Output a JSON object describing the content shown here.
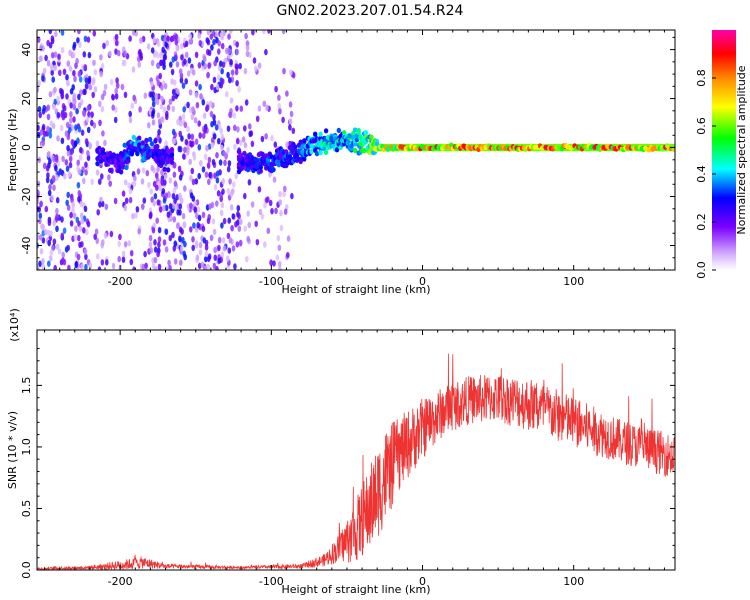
{
  "title": "GN02.2023.207.01.54.R24",
  "chart_data": [
    {
      "type": "heatmap",
      "title": "",
      "xlabel": "Height of straight line (km)",
      "ylabel": "Frequency (Hz)",
      "xlim": [
        -255,
        167
      ],
      "ylim": [
        -50,
        48
      ],
      "xticks": [
        -200,
        -100,
        0,
        100
      ],
      "yticks": [
        -40,
        -20,
        0,
        20,
        40
      ],
      "colorbar": {
        "label": "Normalized spectral amplitude",
        "range": [
          0,
          1
        ],
        "ticks": [
          "0.0",
          "0.2",
          "0.4",
          "0.6",
          "0.8"
        ],
        "colormap": "rainbow (white-violet-blue-cyan-green-yellow-orange-red-magenta)"
      },
      "ridge": [
        {
          "x": -210,
          "y": -4,
          "amp": 0.3
        },
        {
          "x": -200,
          "y": -6,
          "amp": 0.3
        },
        {
          "x": -190,
          "y": 1,
          "amp": 0.4
        },
        {
          "x": -180,
          "y": -2,
          "amp": 0.35
        },
        {
          "x": -170,
          "y": -4,
          "amp": 0.3
        },
        {
          "x": -120,
          "y": -6,
          "amp": 0.3
        },
        {
          "x": -100,
          "y": -6,
          "amp": 0.35
        },
        {
          "x": -85,
          "y": -3,
          "amp": 0.35
        },
        {
          "x": -70,
          "y": 2,
          "amp": 0.45
        },
        {
          "x": -55,
          "y": 3,
          "amp": 0.5
        },
        {
          "x": -40,
          "y": 2,
          "amp": 0.55
        },
        {
          "x": -25,
          "y": 0,
          "amp": 0.8
        },
        {
          "x": 0,
          "y": 0,
          "amp": 0.9
        },
        {
          "x": 50,
          "y": 0,
          "amp": 0.92
        },
        {
          "x": 100,
          "y": 0,
          "amp": 0.92
        },
        {
          "x": 167,
          "y": 0,
          "amp": 0.92
        }
      ],
      "scatter_regions": [
        {
          "x": [
            -255,
            -220
          ],
          "density": 0.8
        },
        {
          "x": [
            -220,
            -160
          ],
          "density": 0.35
        },
        {
          "x": [
            -180,
            -120
          ],
          "density": 0.7
        },
        {
          "x": [
            -120,
            -85
          ],
          "density": 0.25
        }
      ]
    },
    {
      "type": "line",
      "title": "",
      "xlabel": "Height of straight line (km)",
      "ylabel": "SNR (10 * v/v)",
      "y_multiplier": "(x10⁴)",
      "xlim": [
        -255,
        167
      ],
      "ylim": [
        0,
        1.95
      ],
      "xticks": [
        -200,
        -100,
        0,
        100
      ],
      "yticks": [
        "0.0",
        "0.5",
        "1.0",
        "1.5"
      ],
      "series": [
        {
          "color": "#ee3333",
          "envelope": [
            {
              "x": -255,
              "mean": 0.01,
              "noise": 0.01
            },
            {
              "x": -220,
              "mean": 0.02,
              "noise": 0.015
            },
            {
              "x": -200,
              "mean": 0.04,
              "noise": 0.04
            },
            {
              "x": -185,
              "mean": 0.06,
              "noise": 0.05
            },
            {
              "x": -170,
              "mean": 0.03,
              "noise": 0.02
            },
            {
              "x": -120,
              "mean": 0.02,
              "noise": 0.01
            },
            {
              "x": -80,
              "mean": 0.03,
              "noise": 0.02
            },
            {
              "x": -65,
              "mean": 0.08,
              "noise": 0.05
            },
            {
              "x": -55,
              "mean": 0.18,
              "noise": 0.12
            },
            {
              "x": -45,
              "mean": 0.3,
              "noise": 0.25
            },
            {
              "x": -35,
              "mean": 0.5,
              "noise": 0.35
            },
            {
              "x": -25,
              "mean": 0.75,
              "noise": 0.4
            },
            {
              "x": -15,
              "mean": 0.95,
              "noise": 0.3
            },
            {
              "x": 0,
              "mean": 1.15,
              "noise": 0.25
            },
            {
              "x": 15,
              "mean": 1.3,
              "noise": 0.2
            },
            {
              "x": 30,
              "mean": 1.38,
              "noise": 0.2
            },
            {
              "x": 50,
              "mean": 1.4,
              "noise": 0.2
            },
            {
              "x": 70,
              "mean": 1.35,
              "noise": 0.22
            },
            {
              "x": 90,
              "mean": 1.25,
              "noise": 0.22
            },
            {
              "x": 110,
              "mean": 1.15,
              "noise": 0.2
            },
            {
              "x": 130,
              "mean": 1.05,
              "noise": 0.18
            },
            {
              "x": 150,
              "mean": 0.98,
              "noise": 0.18
            },
            {
              "x": 167,
              "mean": 0.92,
              "noise": 0.18
            }
          ]
        }
      ]
    }
  ]
}
